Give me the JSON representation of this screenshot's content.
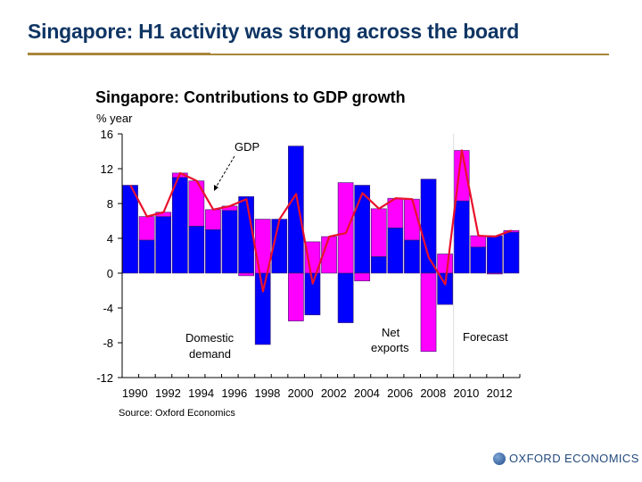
{
  "slide": {
    "title": "Singapore: H1 activity was strong across the board",
    "logo_text": "OXFORD ECONOMICS",
    "logo_icon": "globe-icon"
  },
  "colors": {
    "title": "#0f3564",
    "rule": "#a8863a",
    "domestic_demand": "#0000ff",
    "net_exports": "#ff00ff",
    "gdp_line": "#e8112d"
  },
  "chart_data": {
    "type": "bar",
    "stacked": true,
    "title": "Singapore: Contributions to GDP growth",
    "ylabel": "% year",
    "xlabel": "",
    "ylim": [
      -12,
      16
    ],
    "yticks": [
      16,
      12,
      8,
      4,
      0,
      -4,
      -8,
      -12
    ],
    "categories": [
      "1990",
      "1991",
      "1992",
      "1993",
      "1994",
      "1995",
      "1996",
      "1997",
      "1998",
      "1999",
      "2000",
      "2001",
      "2002",
      "2003",
      "2004",
      "2005",
      "2006",
      "2007",
      "2008",
      "2009",
      "2010",
      "2011",
      "2012",
      "2013"
    ],
    "xtick_labels": [
      "1990",
      "1992",
      "1994",
      "1996",
      "1998",
      "2000",
      "2002",
      "2004",
      "2006",
      "2008",
      "2010",
      "2012"
    ],
    "series": [
      {
        "name": "Domestic demand",
        "type": "bar",
        "values": [
          10.1,
          3.8,
          6.5,
          11.0,
          5.4,
          5.0,
          7.2,
          8.8,
          -8.2,
          6.2,
          14.6,
          -4.8,
          0.0,
          -5.7,
          10.1,
          1.9,
          5.2,
          3.8,
          10.8,
          -3.6,
          8.3,
          3.0,
          4.3,
          4.7
        ]
      },
      {
        "name": "Net exports",
        "type": "bar",
        "values": [
          0.0,
          2.7,
          0.5,
          0.5,
          5.2,
          2.3,
          0.5,
          -0.3,
          6.2,
          0.0,
          -5.5,
          3.6,
          4.2,
          10.4,
          -0.9,
          5.5,
          3.4,
          4.7,
          -9.0,
          2.2,
          5.8,
          1.3,
          -0.1,
          0.2
        ]
      },
      {
        "name": "GDP",
        "type": "line",
        "values": [
          10.1,
          6.5,
          7.0,
          11.5,
          10.6,
          7.3,
          7.7,
          8.5,
          -2.1,
          6.2,
          9.1,
          -1.2,
          4.2,
          4.6,
          9.2,
          7.4,
          8.6,
          8.5,
          1.8,
          -1.3,
          14.1,
          4.3,
          4.2,
          4.9
        ]
      }
    ],
    "forecast_start": "2010",
    "annotations": {
      "gdp": "GDP",
      "domestic_line1": "Domestic",
      "domestic_line2": "demand",
      "net_line1": "Net",
      "net_line2": "exports",
      "forecast": "Forecast"
    },
    "source": "Source: Oxford Economics",
    "grid": false,
    "legend": "none"
  }
}
